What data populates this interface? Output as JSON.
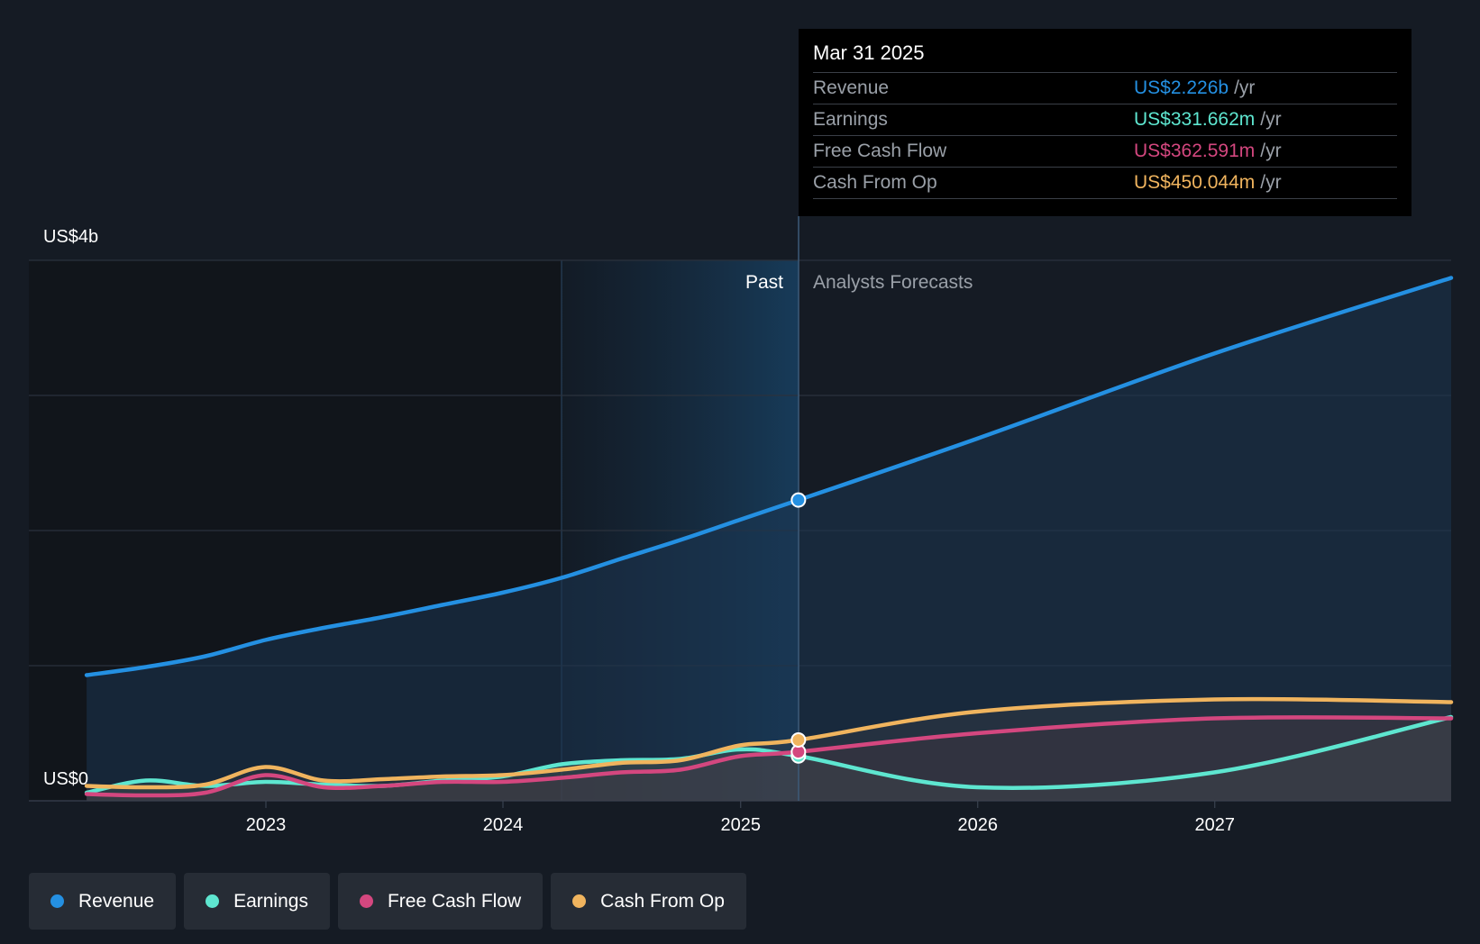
{
  "chart_data": {
    "type": "area",
    "y_unit_labels": {
      "top": "US$4b",
      "bottom": "US$0"
    },
    "ylim": [
      0,
      4000
    ],
    "x_ticks": [
      "2023",
      "2024",
      "2025",
      "2026",
      "2027"
    ],
    "past_label": "Past",
    "forecast_label": "Analysts Forecasts",
    "highlight_date": "2025-03-31",
    "series": [
      {
        "name": "Revenue",
        "color": "#2490e2",
        "points": [
          [
            "2022-03-31",
            930
          ],
          [
            "2022-06-30",
            990
          ],
          [
            "2022-09-30",
            1070
          ],
          [
            "2022-12-31",
            1190
          ],
          [
            "2023-03-31",
            1280
          ],
          [
            "2023-06-30",
            1360
          ],
          [
            "2023-09-30",
            1450
          ],
          [
            "2023-12-31",
            1540
          ],
          [
            "2024-03-31",
            1650
          ],
          [
            "2024-06-30",
            1790
          ],
          [
            "2024-09-30",
            1930
          ],
          [
            "2024-12-31",
            2080
          ],
          [
            "2025-03-31",
            2226
          ],
          [
            "2025-12-31",
            2680
          ],
          [
            "2026-12-31",
            3310
          ],
          [
            "2027-12-31",
            3870
          ]
        ]
      },
      {
        "name": "Earnings",
        "color": "#5ee6d0",
        "points": [
          [
            "2022-03-31",
            60
          ],
          [
            "2022-06-30",
            150
          ],
          [
            "2022-09-30",
            110
          ],
          [
            "2022-12-31",
            140
          ],
          [
            "2023-03-31",
            120
          ],
          [
            "2023-06-30",
            110
          ],
          [
            "2023-09-30",
            150
          ],
          [
            "2023-12-31",
            180
          ],
          [
            "2024-03-31",
            270
          ],
          [
            "2024-06-30",
            300
          ],
          [
            "2024-09-30",
            310
          ],
          [
            "2024-12-31",
            380
          ],
          [
            "2025-03-31",
            331.662
          ],
          [
            "2025-12-31",
            100
          ],
          [
            "2026-12-31",
            210
          ],
          [
            "2027-12-31",
            620
          ]
        ]
      },
      {
        "name": "Free Cash Flow",
        "color": "#d4477f",
        "points": [
          [
            "2022-03-31",
            50
          ],
          [
            "2022-06-30",
            40
          ],
          [
            "2022-09-30",
            60
          ],
          [
            "2022-12-31",
            190
          ],
          [
            "2023-03-31",
            100
          ],
          [
            "2023-06-30",
            110
          ],
          [
            "2023-09-30",
            140
          ],
          [
            "2023-12-31",
            140
          ],
          [
            "2024-03-31",
            170
          ],
          [
            "2024-06-30",
            210
          ],
          [
            "2024-09-30",
            230
          ],
          [
            "2024-12-31",
            330
          ],
          [
            "2025-03-31",
            362.591
          ],
          [
            "2025-12-31",
            500
          ],
          [
            "2026-12-31",
            610
          ],
          [
            "2027-12-31",
            610
          ]
        ]
      },
      {
        "name": "Cash From Op",
        "color": "#f0b45e",
        "points": [
          [
            "2022-03-31",
            110
          ],
          [
            "2022-06-30",
            100
          ],
          [
            "2022-09-30",
            120
          ],
          [
            "2022-12-31",
            250
          ],
          [
            "2023-03-31",
            150
          ],
          [
            "2023-06-30",
            160
          ],
          [
            "2023-09-30",
            180
          ],
          [
            "2023-12-31",
            190
          ],
          [
            "2024-03-31",
            230
          ],
          [
            "2024-06-30",
            280
          ],
          [
            "2024-09-30",
            300
          ],
          [
            "2024-12-31",
            410
          ],
          [
            "2025-03-31",
            450.044
          ],
          [
            "2025-12-31",
            660
          ],
          [
            "2026-12-31",
            750
          ],
          [
            "2027-12-31",
            730
          ]
        ]
      }
    ]
  },
  "tooltip": {
    "date": "Mar 31 2025",
    "unit": "/yr",
    "rows": [
      {
        "label": "Revenue",
        "value": "US$2.226b",
        "color": "#2490e2"
      },
      {
        "label": "Earnings",
        "value": "US$331.662m",
        "color": "#5ee6d0"
      },
      {
        "label": "Free Cash Flow",
        "value": "US$362.591m",
        "color": "#d4477f"
      },
      {
        "label": "Cash From Op",
        "value": "US$450.044m",
        "color": "#f0b45e"
      }
    ]
  },
  "legend": [
    {
      "label": "Revenue",
      "color": "#2490e2"
    },
    {
      "label": "Earnings",
      "color": "#5ee6d0"
    },
    {
      "label": "Free Cash Flow",
      "color": "#d4477f"
    },
    {
      "label": "Cash From Op",
      "color": "#f0b45e"
    }
  ]
}
